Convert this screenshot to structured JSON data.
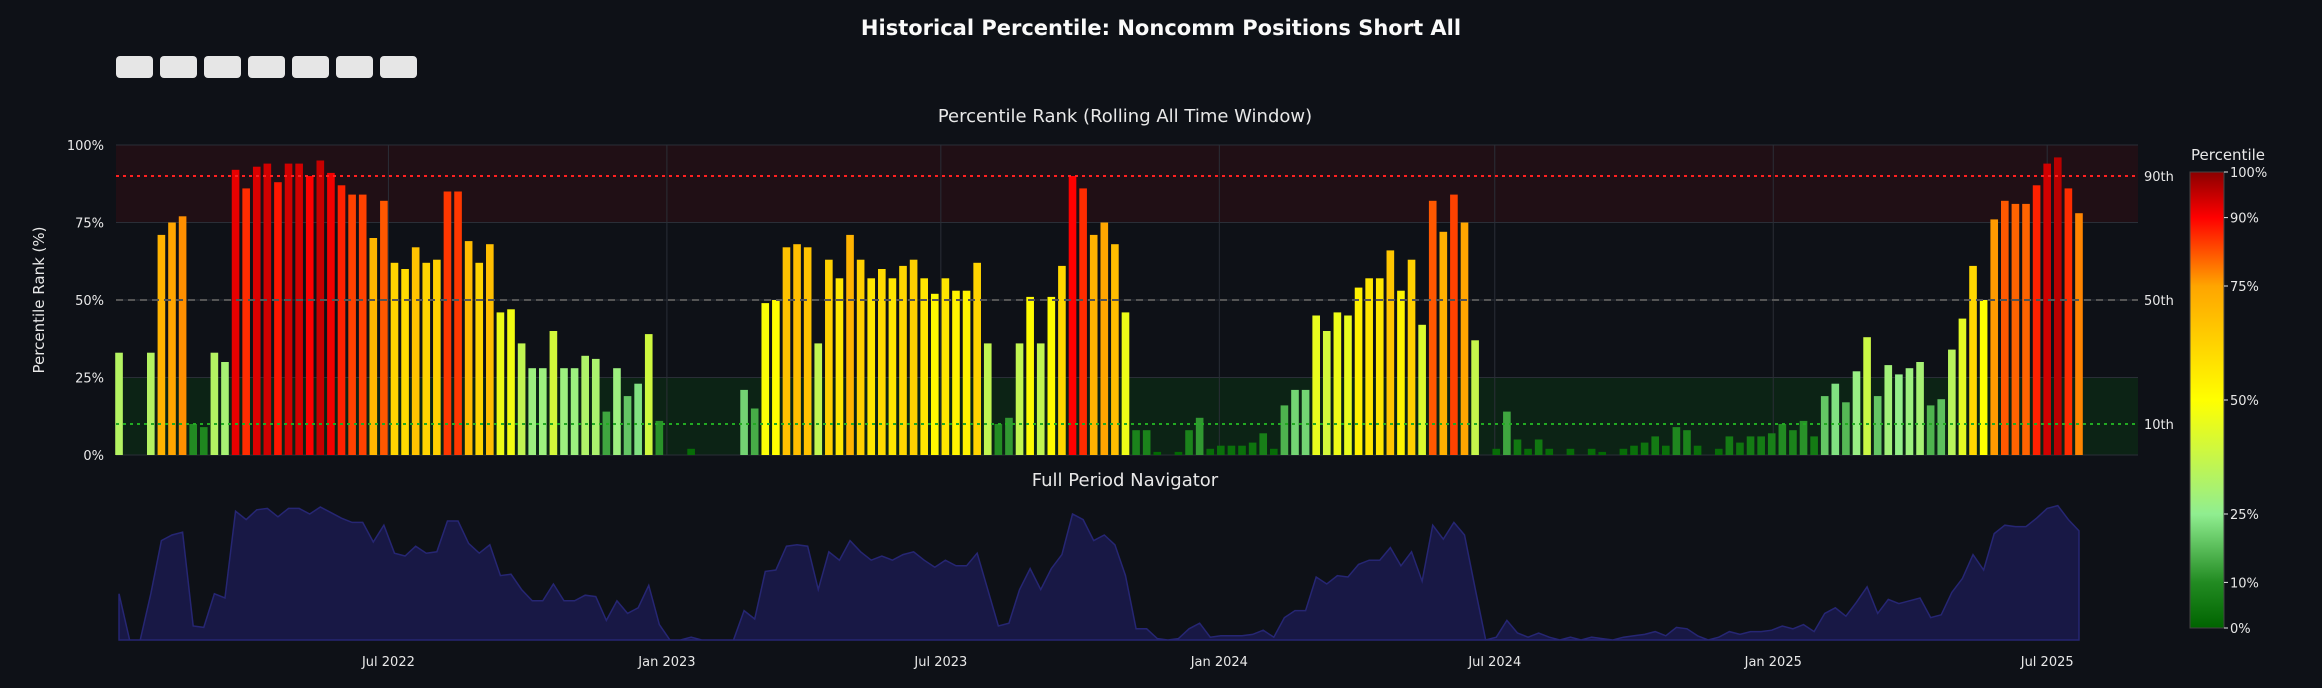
{
  "title": "Historical Percentile: Noncomm Positions Short All",
  "toolbar": {
    "buttons": [
      {
        "name": "range-button-1"
      },
      {
        "name": "range-button-2"
      },
      {
        "name": "range-button-3"
      },
      {
        "name": "range-button-4"
      },
      {
        "name": "range-button-5"
      },
      {
        "name": "range-button-6"
      },
      {
        "name": "range-button-7"
      }
    ]
  },
  "chart_data": {
    "type": "bar",
    "title": "Percentile Rank (Rolling All Time Window)",
    "navigator_title": "Full Period Navigator",
    "ylabel": "Percentile Rank (%)",
    "ylim": [
      0,
      100
    ],
    "yticks": [
      "0%",
      "25%",
      "50%",
      "75%",
      "100%"
    ],
    "xticks": [
      "Jul 2022",
      "Jan 2023",
      "Jul 2023",
      "Jan 2024",
      "Jul 2024",
      "Jan 2025",
      "Jul 2025"
    ],
    "xtick_dates": [
      "2022-07-01",
      "2023-01-01",
      "2023-07-01",
      "2024-01-01",
      "2024-07-01",
      "2025-01-01",
      "2025-07-01"
    ],
    "x_range": [
      "2022-01-02",
      "2025-08-30"
    ],
    "grid": true,
    "reference_lines": [
      {
        "label": "90th",
        "value": 90,
        "style": "dotted",
        "color": "#ff2020"
      },
      {
        "label": "50th",
        "value": 50,
        "style": "dashed",
        "color": "#555555"
      },
      {
        "label": "10th",
        "value": 10,
        "style": "dotted",
        "color": "#22aa22"
      }
    ],
    "bands": [
      {
        "from": 75,
        "to": 100,
        "color": "#ff0000"
      },
      {
        "from": 0,
        "to": 25,
        "color": "#00ff00"
      }
    ],
    "colorbar": {
      "title": "Percentile",
      "ticks": [
        "0%",
        "10%",
        "25%",
        "50%",
        "75%",
        "90%",
        "100%"
      ],
      "tick_values": [
        0,
        10,
        25,
        50,
        75,
        90,
        100
      ],
      "stops": [
        {
          "v": 0,
          "c": "#006400"
        },
        {
          "v": 10,
          "c": "#228b22"
        },
        {
          "v": 25,
          "c": "#90ee90"
        },
        {
          "v": 50,
          "c": "#ffff00"
        },
        {
          "v": 75,
          "c": "#ffa500"
        },
        {
          "v": 90,
          "c": "#ff0000"
        },
        {
          "v": 100,
          "c": "#8b0000"
        }
      ]
    },
    "navigator_color": "#1a1a4d",
    "start_date": "2022-01-04",
    "interval_days": 7,
    "values": [
      33,
      null,
      null,
      33,
      71,
      75,
      77,
      10,
      9,
      33,
      30,
      92,
      86,
      93,
      94,
      88,
      94,
      94,
      90,
      95,
      91,
      87,
      84,
      84,
      70,
      82,
      62,
      60,
      67,
      62,
      63,
      85,
      85,
      69,
      62,
      68,
      46,
      47,
      36,
      28,
      28,
      40,
      28,
      28,
      32,
      31,
      14,
      28,
      19,
      23,
      39,
      11,
      0,
      0,
      2,
      0,
      0,
      0,
      0,
      21,
      15,
      49,
      50,
      67,
      68,
      67,
      36,
      63,
      57,
      71,
      63,
      57,
      60,
      57,
      61,
      63,
      57,
      52,
      57,
      53,
      53,
      62,
      36,
      10,
      12,
      36,
      51,
      36,
      51,
      61,
      90,
      86,
      71,
      75,
      68,
      46,
      8,
      8,
      1,
      0,
      1,
      8,
      12,
      2,
      3,
      3,
      3,
      4,
      7,
      2,
      16,
      21,
      21,
      45,
      40,
      46,
      45,
      54,
      57,
      57,
      66,
      53,
      63,
      42,
      82,
      72,
      84,
      75,
      37,
      0,
      2,
      14,
      5,
      2,
      5,
      2,
      0,
      2,
      0,
      2,
      1,
      0,
      2,
      3,
      4,
      6,
      3,
      9,
      8,
      3,
      0,
      2,
      6,
      4,
      6,
      6,
      7,
      10,
      8,
      11,
      6,
      19,
      23,
      17,
      27,
      38,
      19,
      29,
      26,
      28,
      30,
      16,
      18,
      34,
      44,
      61,
      50,
      76,
      82,
      81,
      81,
      87,
      94,
      96,
      86,
      78
    ]
  }
}
